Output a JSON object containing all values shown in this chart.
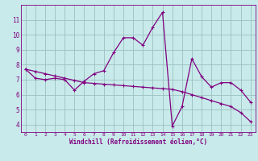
{
  "line1_x": [
    0,
    1,
    2,
    3,
    4,
    5,
    6,
    7,
    8,
    9,
    10,
    11,
    12,
    13,
    14,
    15,
    16,
    17,
    18,
    19,
    20,
    21,
    22,
    23
  ],
  "line1_y": [
    7.7,
    7.1,
    7.0,
    7.1,
    7.0,
    6.3,
    6.9,
    7.4,
    7.6,
    8.8,
    9.8,
    9.8,
    9.3,
    10.5,
    11.5,
    3.9,
    5.2,
    8.4,
    7.2,
    6.5,
    6.8,
    6.8,
    6.3,
    5.5
  ],
  "line2_x": [
    0,
    1,
    2,
    3,
    4,
    5,
    6,
    7,
    8,
    9,
    10,
    11,
    12,
    13,
    14,
    15,
    16,
    17,
    18,
    19,
    20,
    21,
    22,
    23
  ],
  "line2_y": [
    7.7,
    7.55,
    7.4,
    7.25,
    7.1,
    6.95,
    6.8,
    6.75,
    6.7,
    6.65,
    6.6,
    6.55,
    6.5,
    6.45,
    6.4,
    6.35,
    6.2,
    6.0,
    5.8,
    5.6,
    5.4,
    5.2,
    4.8,
    4.2
  ],
  "line_color": "#800080",
  "bg_color": "#c8eaea",
  "grid_color": "#9bbfbf",
  "xlabel": "Windchill (Refroidissement éolien,°C)",
  "ylim": [
    3.5,
    12.0
  ],
  "xlim": [
    -0.5,
    23.5
  ],
  "yticks": [
    4,
    5,
    6,
    7,
    8,
    9,
    10,
    11
  ],
  "xticks": [
    0,
    1,
    2,
    3,
    4,
    5,
    6,
    7,
    8,
    9,
    10,
    11,
    12,
    13,
    14,
    15,
    16,
    17,
    18,
    19,
    20,
    21,
    22,
    23
  ],
  "marker_size": 3.5,
  "line_width": 0.9
}
